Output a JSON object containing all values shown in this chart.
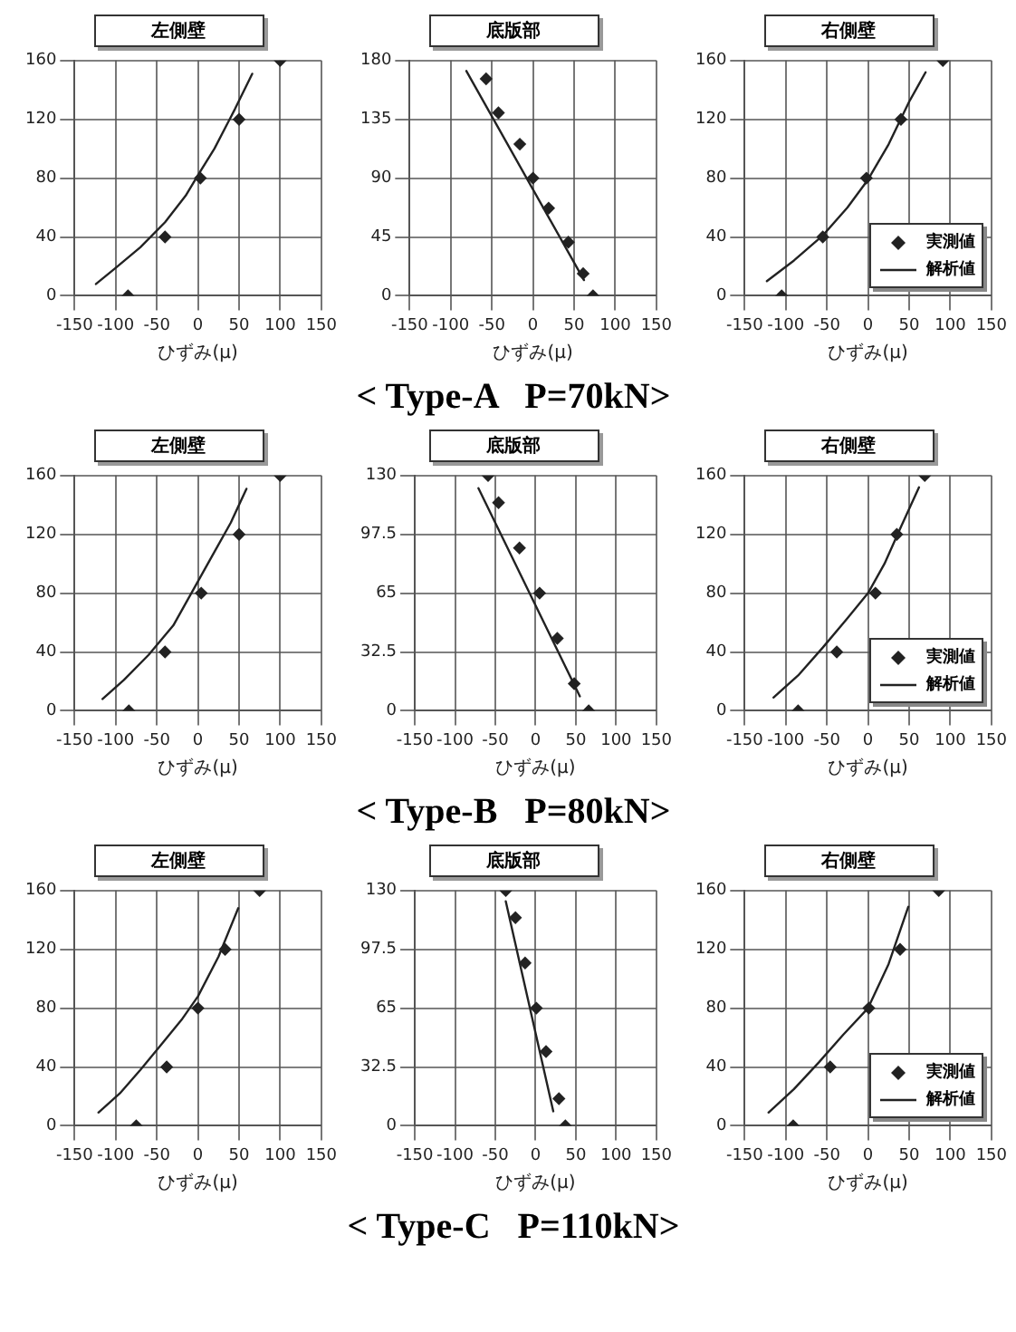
{
  "chart_data": [
    {
      "type": "scatter",
      "title": "左側壁",
      "xlabel": "ひずみ(μ)",
      "xlim": [
        -150,
        150
      ],
      "xticks": [
        -150,
        -100,
        -50,
        0,
        50,
        100,
        150
      ],
      "ylim": [
        0,
        160
      ],
      "yticks": [
        0,
        40,
        80,
        120,
        160
      ],
      "grid": true,
      "series": [
        {
          "type": "scatter",
          "marker": "diamond",
          "color": "#222222",
          "x": [
            100,
            50,
            3,
            -40,
            -85
          ],
          "values": [
            160,
            120,
            80,
            40,
            0
          ]
        },
        {
          "type": "line",
          "color": "#222222",
          "x": [
            -124,
            -100,
            -70,
            -40,
            -15,
            0,
            20,
            45,
            66
          ],
          "values": [
            8,
            19,
            33,
            50,
            68,
            82,
            100,
            127,
            151
          ]
        }
      ]
    },
    {
      "type": "scatter",
      "title": "底版部",
      "xlabel": "ひずみ(μ)",
      "xlim": [
        -150,
        150
      ],
      "xticks": [
        -150,
        -100,
        -50,
        0,
        50,
        100,
        150
      ],
      "ylim": [
        0,
        180
      ],
      "yticks": [
        0,
        45,
        90,
        135,
        180
      ],
      "grid": true,
      "annotations": [
        "< Type-A   P=70kN>"
      ],
      "series": [
        {
          "type": "scatter",
          "marker": "diamond",
          "color": "#222222",
          "x": [
            -57,
            -42,
            -16,
            0,
            19,
            43,
            61,
            73
          ],
          "values": [
            166,
            140,
            116,
            90,
            67,
            41,
            17,
            0
          ]
        },
        {
          "type": "line",
          "color": "#222222",
          "x": [
            -81,
            62
          ],
          "values": [
            172,
            12
          ]
        }
      ]
    },
    {
      "type": "scatter",
      "title": "右側壁",
      "xlabel": "ひずみ(μ)",
      "xlim": [
        -150,
        150
      ],
      "xticks": [
        -150,
        -100,
        -50,
        0,
        50,
        100,
        150
      ],
      "ylim": [
        0,
        160
      ],
      "yticks": [
        0,
        40,
        80,
        120,
        160
      ],
      "grid": true,
      "legend": "bottom right",
      "series": [
        {
          "type": "scatter",
          "name": "実測値",
          "marker": "diamond",
          "color": "#222222",
          "x": [
            91,
            40,
            -2,
            -55,
            -105
          ],
          "values": [
            160,
            120,
            80,
            40,
            0
          ]
        },
        {
          "type": "line",
          "name": "解析値",
          "color": "#222222",
          "x": [
            -123,
            -90,
            -55,
            -25,
            0,
            25,
            50,
            70
          ],
          "values": [
            10,
            24,
            41,
            60,
            79,
            103,
            132,
            152
          ]
        }
      ]
    },
    {
      "type": "scatter",
      "title": "左側壁",
      "xlabel": "ひずみ(μ)",
      "xlim": [
        -150,
        150
      ],
      "xticks": [
        -150,
        -100,
        -50,
        0,
        50,
        100,
        150
      ],
      "ylim": [
        0,
        160
      ],
      "yticks": [
        0,
        40,
        80,
        120,
        160
      ],
      "grid": true,
      "series": [
        {
          "type": "scatter",
          "marker": "diamond",
          "color": "#222222",
          "x": [
            100,
            50,
            4,
            -40,
            -84
          ],
          "values": [
            160,
            120,
            80,
            40,
            0
          ]
        },
        {
          "type": "line",
          "color": "#222222",
          "x": [
            -116,
            -90,
            -60,
            -30,
            0,
            20,
            40,
            59
          ],
          "values": [
            8,
            21,
            38,
            58,
            88,
            108,
            128,
            151
          ]
        }
      ]
    },
    {
      "type": "scatter",
      "title": "底版部",
      "xlabel": "ひずみ(μ)",
      "xlim": [
        -150,
        150
      ],
      "xticks": [
        -150,
        -100,
        -50,
        0,
        50,
        100,
        150
      ],
      "ylim": [
        0,
        130
      ],
      "yticks": [
        0,
        32.5,
        65,
        97.5,
        130
      ],
      "grid": true,
      "annotations": [
        "< Type-B   P=80kN>"
      ],
      "series": [
        {
          "type": "scatter",
          "marker": "diamond",
          "color": "#222222",
          "x": [
            -59,
            -46,
            -20,
            5,
            27,
            48,
            66
          ],
          "values": [
            130,
            115,
            90,
            65,
            40,
            15,
            0
          ]
        },
        {
          "type": "line",
          "color": "#222222",
          "x": [
            -71,
            55
          ],
          "values": [
            123,
            8
          ]
        }
      ]
    },
    {
      "type": "scatter",
      "title": "右側壁",
      "xlabel": "ひずみ(μ)",
      "xlim": [
        -150,
        150
      ],
      "xticks": [
        -150,
        -100,
        -50,
        0,
        50,
        100,
        150
      ],
      "ylim": [
        0,
        160
      ],
      "yticks": [
        0,
        40,
        80,
        120,
        160
      ],
      "grid": true,
      "legend": "bottom right",
      "series": [
        {
          "type": "scatter",
          "name": "実測値",
          "marker": "diamond",
          "color": "#222222",
          "x": [
            69,
            35,
            9,
            -38,
            -85
          ],
          "values": [
            160,
            120,
            80,
            40,
            0
          ]
        },
        {
          "type": "line",
          "name": "解析値",
          "color": "#222222",
          "x": [
            -115,
            -85,
            -55,
            -25,
            0,
            20,
            40,
            62
          ],
          "values": [
            9,
            24,
            43,
            63,
            80,
            100,
            125,
            152
          ]
        }
      ]
    },
    {
      "type": "scatter",
      "title": "左側壁",
      "xlabel": "ひずみ(μ)",
      "xlim": [
        -150,
        150
      ],
      "xticks": [
        -150,
        -100,
        -50,
        0,
        50,
        100,
        150
      ],
      "ylim": [
        0,
        160
      ],
      "yticks": [
        0,
        40,
        80,
        120,
        160
      ],
      "grid": true,
      "series": [
        {
          "type": "scatter",
          "marker": "diamond",
          "color": "#222222",
          "x": [
            75,
            33,
            0,
            -38,
            -75
          ],
          "values": [
            160,
            120,
            80,
            40,
            0
          ]
        },
        {
          "type": "line",
          "color": "#222222",
          "x": [
            -121,
            -95,
            -70,
            -45,
            -20,
            0,
            25,
            49
          ],
          "values": [
            9,
            22,
            38,
            55,
            72,
            88,
            115,
            148
          ]
        }
      ]
    },
    {
      "type": "scatter",
      "title": "底版部",
      "xlabel": "ひずみ(μ)",
      "xlim": [
        -150,
        150
      ],
      "xticks": [
        -150,
        -100,
        -50,
        0,
        50,
        100,
        150
      ],
      "ylim": [
        0,
        130
      ],
      "yticks": [
        0,
        32.5,
        65,
        97.5,
        130
      ],
      "grid": true,
      "annotations": [
        "< Type-C   P=110kN>"
      ],
      "series": [
        {
          "type": "scatter",
          "marker": "diamond",
          "color": "#222222",
          "x": [
            -37,
            -25,
            -13,
            1,
            13,
            29,
            37
          ],
          "values": [
            130,
            115,
            90,
            65,
            41,
            15,
            0
          ]
        },
        {
          "type": "line",
          "color": "#222222",
          "x": [
            -37,
            22
          ],
          "values": [
            124,
            8
          ]
        }
      ]
    },
    {
      "type": "scatter",
      "title": "右側壁",
      "xlabel": "ひずみ(μ)",
      "xlim": [
        -150,
        150
      ],
      "xticks": [
        -150,
        -100,
        -50,
        0,
        50,
        100,
        150
      ],
      "ylim": [
        0,
        160
      ],
      "yticks": [
        0,
        40,
        80,
        120,
        160
      ],
      "grid": true,
      "legend": "bottom right",
      "series": [
        {
          "type": "scatter",
          "name": "実測値",
          "marker": "diamond",
          "color": "#222222",
          "x": [
            86,
            39,
            1,
            -46,
            -91
          ],
          "values": [
            160,
            120,
            80,
            40,
            0
          ]
        },
        {
          "type": "line",
          "name": "解析値",
          "color": "#222222",
          "x": [
            -121,
            -90,
            -60,
            -30,
            0,
            25,
            49
          ],
          "values": [
            9,
            25,
            43,
            62,
            80,
            110,
            149
          ]
        }
      ]
    }
  ]
}
